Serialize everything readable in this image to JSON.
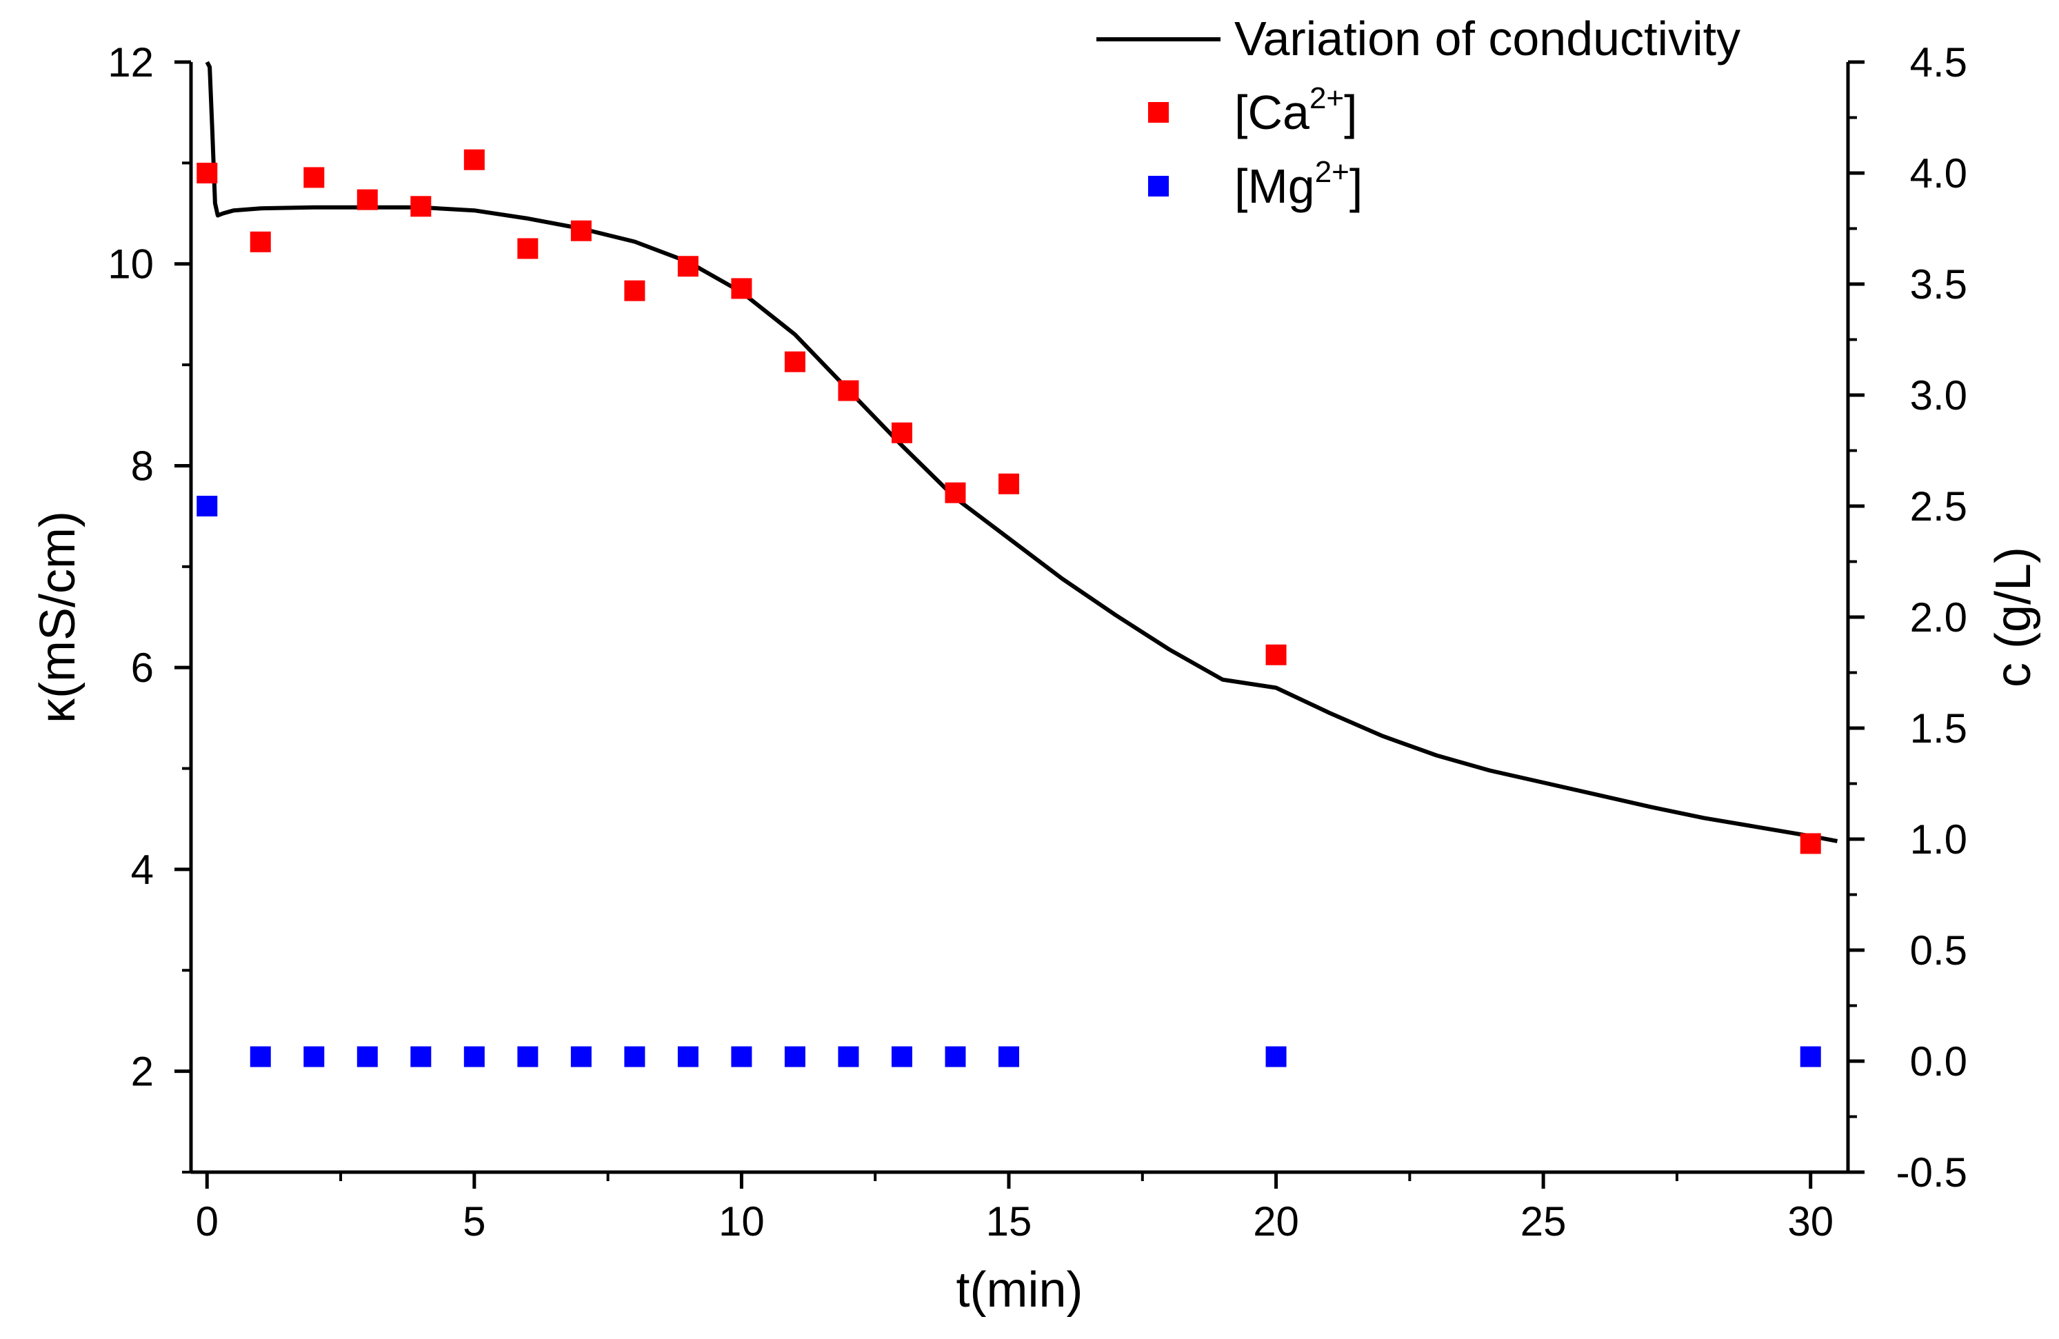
{
  "chart_data": {
    "type": "scatter",
    "title": "",
    "xlabel": "t(min)",
    "ylabel_left": "κ(mS/cm)",
    "ylabel_right": "c (g/L)",
    "xlim": [
      -0.3,
      30.7
    ],
    "ylim_left": [
      1,
      12
    ],
    "ylim_right": [
      -0.5,
      4.5
    ],
    "x_ticks": [
      0,
      5,
      10,
      15,
      20,
      25,
      30
    ],
    "x_tick_labels": [
      "0",
      "5",
      "10",
      "15",
      "20",
      "25",
      "30"
    ],
    "y_left_ticks": [
      2,
      4,
      6,
      8,
      10,
      12
    ],
    "y_left_tick_labels": [
      "2",
      "4",
      "6",
      "8",
      "10",
      "12"
    ],
    "y_right_ticks": [
      -0.5,
      0.0,
      0.5,
      1.0,
      1.5,
      2.0,
      2.5,
      3.0,
      3.5,
      4.0,
      4.5
    ],
    "y_right_tick_labels": [
      "-0.5",
      "0.0",
      "0.5",
      "1.0",
      "1.5",
      "2.0",
      "2.5",
      "3.0",
      "3.5",
      "4.0",
      "4.5"
    ],
    "grid": false,
    "legend_position": "top-right",
    "series": [
      {
        "name": "Variation of conductivity",
        "kind": "line",
        "axis": "left",
        "color": "#000000",
        "x": [
          0,
          0.05,
          0.1,
          0.15,
          0.2,
          0.3,
          0.5,
          1,
          2,
          3,
          4,
          5,
          6,
          7,
          8,
          9,
          10,
          11,
          12,
          13,
          14,
          15,
          16,
          17,
          18,
          19,
          20,
          21,
          22,
          23,
          24,
          25,
          26,
          27,
          28,
          29,
          30,
          30.5
        ],
        "y": [
          12.0,
          11.95,
          11.3,
          10.6,
          10.48,
          10.5,
          10.53,
          10.55,
          10.56,
          10.56,
          10.56,
          10.53,
          10.45,
          10.35,
          10.22,
          10.02,
          9.72,
          9.3,
          8.75,
          8.2,
          7.68,
          7.28,
          6.88,
          6.52,
          6.18,
          5.88,
          5.8,
          5.55,
          5.32,
          5.13,
          4.98,
          4.86,
          4.74,
          4.62,
          4.51,
          4.42,
          4.33,
          4.28
        ]
      },
      {
        "name": "[Ca2+]",
        "name_main": "[Ca",
        "name_sup": "2+",
        "name_end": "]",
        "kind": "scatter",
        "axis": "right",
        "color": "#ff0000",
        "x": [
          0,
          1,
          2,
          3,
          4,
          5,
          6,
          7,
          8,
          9,
          10,
          11,
          12,
          13,
          14,
          15,
          20,
          30
        ],
        "y": [
          4.0,
          3.69,
          3.98,
          3.88,
          3.85,
          4.06,
          3.66,
          3.74,
          3.47,
          3.58,
          3.48,
          3.15,
          3.02,
          2.83,
          2.56,
          2.6,
          1.83,
          0.98
        ]
      },
      {
        "name": "[Mg2+]",
        "name_main": "[Mg",
        "name_sup": "2+",
        "name_end": "]",
        "kind": "scatter",
        "axis": "right",
        "color": "#0000ff",
        "x": [
          0,
          1,
          2,
          3,
          4,
          5,
          6,
          7,
          8,
          9,
          10,
          11,
          12,
          13,
          14,
          15,
          20,
          30
        ],
        "y": [
          2.5,
          0.02,
          0.02,
          0.02,
          0.02,
          0.02,
          0.02,
          0.02,
          0.02,
          0.02,
          0.02,
          0.02,
          0.02,
          0.02,
          0.02,
          0.02,
          0.02,
          0.02
        ]
      }
    ]
  }
}
